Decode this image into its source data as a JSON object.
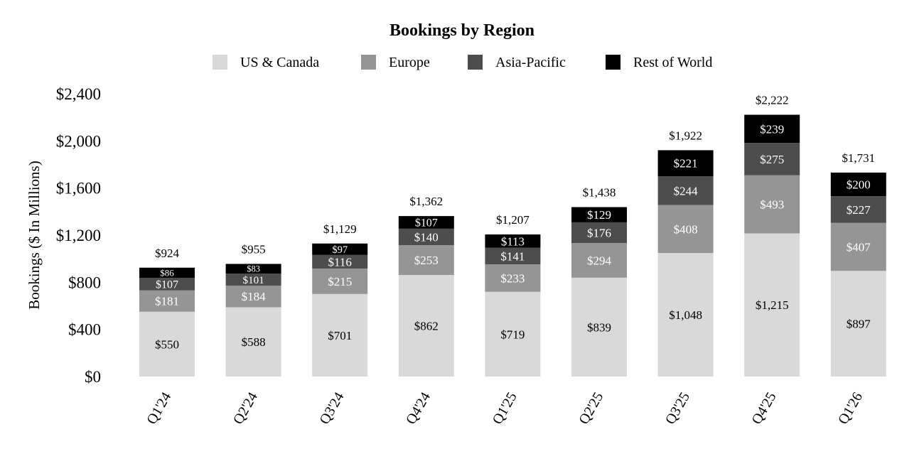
{
  "chart_data": {
    "type": "bar",
    "stacked": true,
    "title": "Bookings by Region",
    "ylabel": "Bookings ($ In Millions)",
    "xlabel": "",
    "ylim": [
      0,
      2400
    ],
    "yticks": [
      0,
      400,
      800,
      1200,
      1600,
      2000,
      2400
    ],
    "ytick_labels": [
      "$0",
      "$400",
      "$800",
      "$1,200",
      "$1,600",
      "$2,000",
      "$2,400"
    ],
    "grid": false,
    "legend_position": "top-center",
    "categories": [
      "Q1'24",
      "Q2'24",
      "Q3'24",
      "Q4'24",
      "Q1'25",
      "Q2'25",
      "Q3'25",
      "Q4'25",
      "Q1'26"
    ],
    "series": [
      {
        "name": "US & Canada",
        "color": "#d9d9d9",
        "label_color": "#000000",
        "values": [
          550,
          588,
          701,
          862,
          719,
          839,
          1048,
          1215,
          897
        ],
        "labels": [
          "$550",
          "$588",
          "$701",
          "$862",
          "$719",
          "$839",
          "$1,048",
          "$1,215",
          "$897"
        ]
      },
      {
        "name": "Europe",
        "color": "#959595",
        "label_color": "#ffffff",
        "values": [
          181,
          184,
          215,
          253,
          233,
          294,
          408,
          493,
          407
        ],
        "labels": [
          "$181",
          "$184",
          "$215",
          "$253",
          "$233",
          "$294",
          "$408",
          "$493",
          "$407"
        ]
      },
      {
        "name": "Asia-Pacific",
        "color": "#4d4d4d",
        "label_color": "#ffffff",
        "values": [
          107,
          101,
          116,
          140,
          141,
          176,
          244,
          275,
          227
        ],
        "labels": [
          "$107",
          "$101",
          "$116",
          "$140",
          "$141",
          "$176",
          "$244",
          "$275",
          "$227"
        ]
      },
      {
        "name": "Rest of World",
        "color": "#000000",
        "label_color": "#ffffff",
        "values": [
          86,
          83,
          97,
          107,
          113,
          129,
          221,
          239,
          200
        ],
        "labels": [
          "$86",
          "$83",
          "$97",
          "$107",
          "$113",
          "$129",
          "$221",
          "$239",
          "$200"
        ]
      }
    ],
    "totals": [
      924,
      955,
      1129,
      1362,
      1207,
      1438,
      1922,
      2222,
      1731
    ],
    "total_labels": [
      "$924",
      "$955",
      "$1,129",
      "$1,362",
      "$1,207",
      "$1,438",
      "$1,922",
      "$2,222",
      "$1,731"
    ]
  }
}
